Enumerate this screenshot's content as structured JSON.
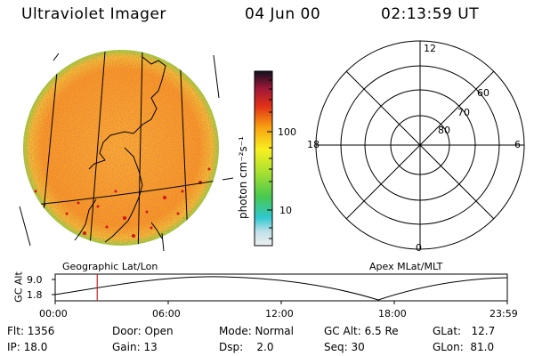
{
  "header": {
    "title": "Ultraviolet Imager",
    "date": "04 Jun 00",
    "time": "02:13:59 UT"
  },
  "colorbar": {
    "unit_label": "photon cm⁻²s⁻¹",
    "ticks": [
      "100",
      "10"
    ]
  },
  "image_panel": {
    "label": "Geographic Lat/Lon"
  },
  "polar_panel": {
    "label": "Apex MLat/MLT",
    "mlt_labels": [
      "12",
      "18",
      "6",
      "0"
    ],
    "mlat_labels": [
      "60",
      "70",
      "80"
    ]
  },
  "timeline": {
    "axis_label": "GC Alt",
    "y_ticks": [
      "9.0",
      "1.8"
    ],
    "x_ticks": [
      "00:00",
      "06:00",
      "12:00",
      "18:00",
      "23:59"
    ],
    "current_time_fraction": 0.093
  },
  "info": {
    "flt": "Flt: 1356",
    "ip": "IP: 18.0",
    "door": "Door: Open",
    "gain": "Gain: 13",
    "mode": "Mode: Normal",
    "dsp": "Dsp:    2.0",
    "gcalt": "GC Alt: 6.5 Re",
    "seq": "Seq: 30",
    "glat": "GLat:   12.7",
    "glon": "GLon:  81.0"
  },
  "colors": {
    "disk_base": "#f4a020",
    "disk_hot": "#d81818",
    "disk_rim": "#88d840",
    "marker": "#cc2020"
  }
}
